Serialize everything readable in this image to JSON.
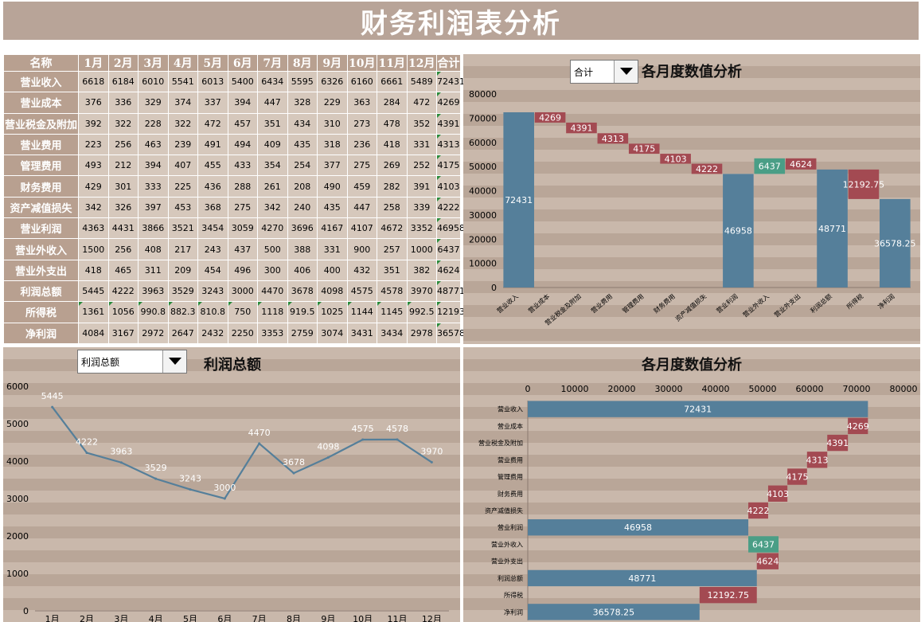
{
  "page_title": "财务利润表分析",
  "table": {
    "headers": [
      "名称",
      "1月",
      "2月",
      "3月",
      "4月",
      "5月",
      "6月",
      "7月",
      "8月",
      "9月",
      "10月",
      "11月",
      "12月",
      "合计"
    ],
    "rows": [
      {
        "name": "营业收入",
        "values": [
          "6618",
          "6184",
          "6010",
          "5541",
          "6013",
          "5400",
          "6434",
          "5595",
          "6326",
          "6160",
          "6661",
          "5489",
          "72431"
        ]
      },
      {
        "name": "营业成本",
        "values": [
          "376",
          "336",
          "329",
          "374",
          "337",
          "394",
          "447",
          "328",
          "229",
          "363",
          "284",
          "472",
          "4269"
        ]
      },
      {
        "name": "营业税金及附加",
        "values": [
          "392",
          "322",
          "228",
          "322",
          "472",
          "457",
          "351",
          "434",
          "310",
          "273",
          "478",
          "352",
          "4391"
        ]
      },
      {
        "name": "营业费用",
        "values": [
          "223",
          "256",
          "463",
          "239",
          "491",
          "494",
          "409",
          "435",
          "318",
          "236",
          "418",
          "331",
          "4313"
        ]
      },
      {
        "name": "管理费用",
        "values": [
          "493",
          "212",
          "394",
          "407",
          "455",
          "433",
          "354",
          "254",
          "377",
          "275",
          "269",
          "252",
          "4175"
        ]
      },
      {
        "name": "财务费用",
        "values": [
          "429",
          "301",
          "333",
          "225",
          "436",
          "288",
          "261",
          "208",
          "490",
          "459",
          "282",
          "391",
          "4103"
        ]
      },
      {
        "name": "资产减值损失",
        "values": [
          "342",
          "326",
          "397",
          "453",
          "368",
          "275",
          "342",
          "240",
          "435",
          "447",
          "258",
          "339",
          "4222"
        ]
      },
      {
        "name": "营业利润",
        "values": [
          "4363",
          "4431",
          "3866",
          "3521",
          "3454",
          "3059",
          "4270",
          "3696",
          "4167",
          "4107",
          "4672",
          "3352",
          "46958"
        ]
      },
      {
        "name": "营业外收入",
        "values": [
          "1500",
          "256",
          "408",
          "217",
          "243",
          "437",
          "500",
          "388",
          "331",
          "900",
          "257",
          "1000",
          "6437"
        ]
      },
      {
        "name": "营业外支出",
        "values": [
          "418",
          "465",
          "311",
          "209",
          "454",
          "496",
          "300",
          "406",
          "400",
          "432",
          "351",
          "382",
          "4624"
        ]
      },
      {
        "name": "利润总额",
        "values": [
          "5445",
          "4222",
          "3963",
          "3529",
          "3243",
          "3000",
          "4470",
          "3678",
          "4098",
          "4575",
          "4578",
          "3970",
          "48771"
        ]
      },
      {
        "name": "所得税",
        "values": [
          "1361",
          "1056",
          "990.8",
          "882.3",
          "810.8",
          "750",
          "1118",
          "919.5",
          "1025",
          "1144",
          "1145",
          "992.5",
          "12193"
        ]
      },
      {
        "name": "净利润",
        "values": [
          "4084",
          "3167",
          "2972",
          "2647",
          "2432",
          "2250",
          "3353",
          "2759",
          "3074",
          "3431",
          "3434",
          "2978",
          "36578"
        ]
      }
    ]
  },
  "top_right": {
    "dropdown_value": "合计",
    "title": "各月度数值分析"
  },
  "bottom_left": {
    "dropdown_value": "利润总额",
    "title": "利润总额"
  },
  "bottom_right": {
    "title": "各月度数值分析"
  },
  "colors": {
    "total": "#557f9a",
    "decrease": "#a34a52",
    "increase": "#4a9e86",
    "line": "#557f9a"
  },
  "chart_data": [
    {
      "type": "bar",
      "subtype": "waterfall-vertical",
      "title": "各月度数值分析",
      "categories": [
        "营业收入",
        "营业成本",
        "营业税金及附加",
        "营业费用",
        "管理费用",
        "财务费用",
        "资产减值损失",
        "营业利润",
        "营业外收入",
        "营业外支出",
        "利润总额",
        "所得税",
        "净利润"
      ],
      "values": [
        72431,
        4269,
        4391,
        4313,
        4175,
        4103,
        4222,
        46958,
        6437,
        4624,
        48771,
        12192.75,
        36578.25
      ],
      "kinds": [
        "total",
        "decrease",
        "decrease",
        "decrease",
        "decrease",
        "decrease",
        "decrease",
        "total",
        "increase",
        "decrease",
        "total",
        "decrease",
        "total"
      ],
      "labels": [
        "72431",
        "4269",
        "4391",
        "4313",
        "4175",
        "4103",
        "4222",
        "46958",
        "6437",
        "4624",
        "48771",
        "12192.75",
        "36578.25"
      ],
      "ylim": [
        0,
        80000
      ],
      "yticks": [
        "0",
        "10000",
        "20000",
        "30000",
        "40000",
        "50000",
        "60000",
        "70000",
        "80000"
      ],
      "grid": false
    },
    {
      "type": "line",
      "title": "利润总额",
      "categories": [
        "1月",
        "2月",
        "3月",
        "4月",
        "5月",
        "6月",
        "7月",
        "8月",
        "9月",
        "10月",
        "11月",
        "12月"
      ],
      "values": [
        5445,
        4222,
        3963,
        3529,
        3243,
        3000,
        4470,
        3678,
        4098,
        4575,
        4578,
        3970
      ],
      "labels": [
        "5445",
        "4222",
        "3963",
        "3529",
        "3243",
        "3000",
        "4470",
        "3678",
        "4098",
        "4575",
        "4578",
        "3970"
      ],
      "ylim": [
        0,
        6000
      ],
      "yticks": [
        "0",
        "1000",
        "2000",
        "3000",
        "4000",
        "5000",
        "6000"
      ],
      "grid": false
    },
    {
      "type": "bar",
      "subtype": "waterfall-horizontal",
      "title": "各月度数值分析",
      "categories": [
        "营业收入",
        "营业成本",
        "营业税金及附加",
        "营业费用",
        "管理费用",
        "财务费用",
        "资产减值损失",
        "营业利润",
        "营业外收入",
        "营业外支出",
        "利润总额",
        "所得税",
        "净利润"
      ],
      "values": [
        72431,
        4269,
        4391,
        4313,
        4175,
        4103,
        4222,
        46958,
        6437,
        4624,
        48771,
        12192.75,
        36578.25
      ],
      "kinds": [
        "total",
        "decrease",
        "decrease",
        "decrease",
        "decrease",
        "decrease",
        "decrease",
        "total",
        "increase",
        "decrease",
        "total",
        "decrease",
        "total"
      ],
      "labels": [
        "72431",
        "4269",
        "4391",
        "4313",
        "4175",
        "4103",
        "4222",
        "46958",
        "6437",
        "4624",
        "48771",
        "12192.75",
        "36578.25"
      ],
      "xlim": [
        0,
        80000
      ],
      "xticks": [
        "0",
        "10000",
        "20000",
        "30000",
        "40000",
        "50000",
        "60000",
        "70000",
        "80000"
      ],
      "grid": false
    }
  ]
}
